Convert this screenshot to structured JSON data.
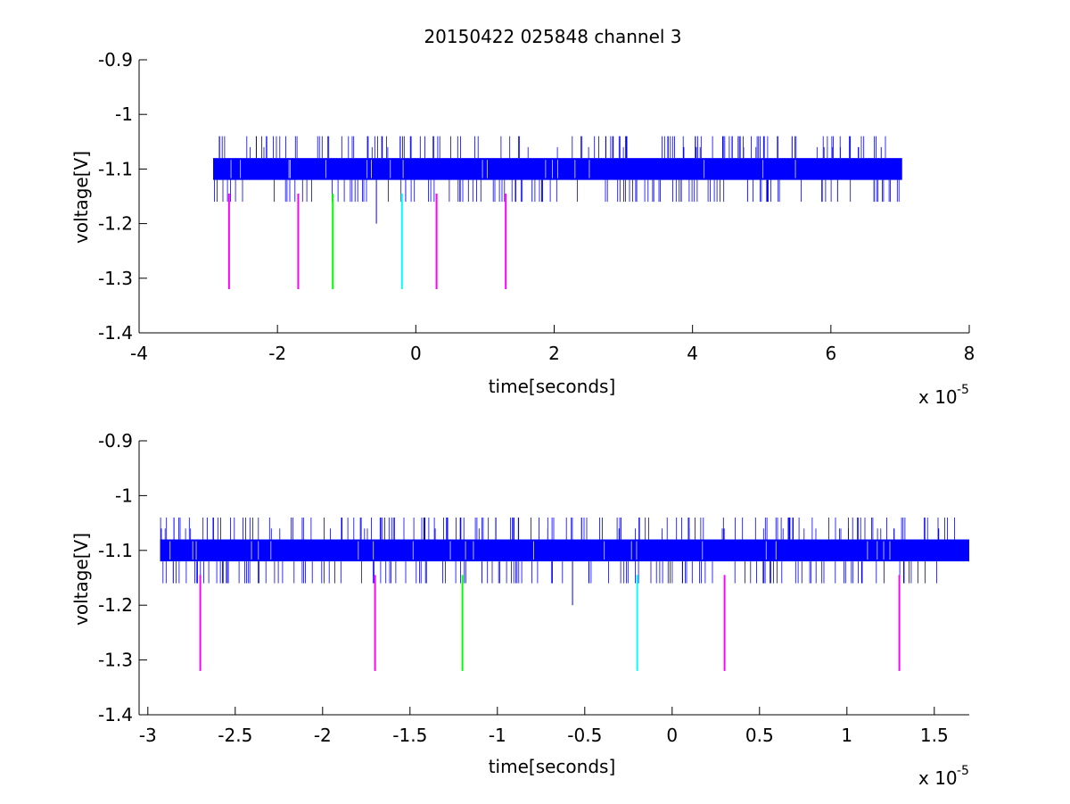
{
  "figure": {
    "title": "20150422 025848 channel 3"
  },
  "colors": {
    "signal": "#0000ff",
    "magenta": "#ff00ff",
    "green": "#00ff00",
    "cyan": "#00ffff",
    "axes": "#000000"
  },
  "chart_data": [
    {
      "type": "line",
      "title": "20150422 025848 channel 3",
      "xlabel": "time[seconds]",
      "ylabel": "voltage[V]",
      "x_exponent_label": "x 10",
      "x_exponent": "-5",
      "x_scale": 1e-05,
      "xlim": [
        -4,
        8
      ],
      "ylim": [
        -1.4,
        -0.9
      ],
      "y_reversed": true,
      "xticks": [
        -4,
        -2,
        0,
        2,
        4,
        6,
        8
      ],
      "xtick_labels": [
        "-4",
        "-2",
        "0",
        "2",
        "4",
        "6",
        "8"
      ],
      "yticks": [
        -0.9,
        -1.0,
        -1.1,
        -1.2,
        -1.3,
        -1.4
      ],
      "ytick_labels": [
        "-0.9",
        "-1",
        "-1.1",
        "-1.2",
        "-1.3",
        "-1.4"
      ],
      "grid": false,
      "series": [
        {
          "kind": "signal",
          "color": "#0000ff",
          "x_range": [
            -2.93,
            7.03
          ],
          "band": [
            -1.12,
            -1.08
          ],
          "spike_min": -1.16,
          "spike_max": -1.04,
          "outlier": {
            "x": -0.57,
            "y": -1.2
          }
        }
      ],
      "markers": [
        {
          "x": -2.7,
          "y_top": -1.145,
          "y_bottom": -1.32,
          "color": "#ff00ff"
        },
        {
          "x": -1.7,
          "y_top": -1.145,
          "y_bottom": -1.32,
          "color": "#ff00ff"
        },
        {
          "x": -1.2,
          "y_top": -1.145,
          "y_bottom": -1.32,
          "color": "#00ff00"
        },
        {
          "x": -0.2,
          "y_top": -1.145,
          "y_bottom": -1.32,
          "color": "#00ffff"
        },
        {
          "x": 0.3,
          "y_top": -1.145,
          "y_bottom": -1.32,
          "color": "#ff00ff"
        },
        {
          "x": 1.3,
          "y_top": -1.145,
          "y_bottom": -1.32,
          "color": "#ff00ff"
        }
      ]
    },
    {
      "type": "line",
      "title": "",
      "xlabel": "time[seconds]",
      "ylabel": "voltage[V]",
      "x_exponent_label": "x 10",
      "x_exponent": "-5",
      "x_scale": 1e-05,
      "xlim": [
        -3.05,
        1.7
      ],
      "ylim": [
        -1.4,
        -0.9
      ],
      "y_reversed": true,
      "xticks": [
        -3,
        -2.5,
        -2,
        -1.5,
        -1,
        -0.5,
        0,
        0.5,
        1,
        1.5
      ],
      "xtick_labels": [
        "-3",
        "-2.5",
        "-2",
        "-1.5",
        "-1",
        "-0.5",
        "0",
        "0.5",
        "1",
        "1.5"
      ],
      "yticks": [
        -0.9,
        -1.0,
        -1.1,
        -1.2,
        -1.3,
        -1.4
      ],
      "ytick_labels": [
        "-0.9",
        "-1",
        "-1.1",
        "-1.2",
        "-1.3",
        "-1.4"
      ],
      "grid": false,
      "series": [
        {
          "kind": "signal",
          "color": "#0000ff",
          "x_range": [
            -2.93,
            1.7
          ],
          "band": [
            -1.12,
            -1.08
          ],
          "spike_min": -1.16,
          "spike_max": -1.04,
          "outlier": {
            "x": -0.57,
            "y": -1.2
          }
        }
      ],
      "markers": [
        {
          "x": -2.7,
          "y_top": -1.145,
          "y_bottom": -1.32,
          "color": "#ff00ff"
        },
        {
          "x": -1.7,
          "y_top": -1.145,
          "y_bottom": -1.32,
          "color": "#ff00ff"
        },
        {
          "x": -1.2,
          "y_top": -1.145,
          "y_bottom": -1.32,
          "color": "#00ff00"
        },
        {
          "x": -0.2,
          "y_top": -1.145,
          "y_bottom": -1.32,
          "color": "#00ffff"
        },
        {
          "x": 0.3,
          "y_top": -1.145,
          "y_bottom": -1.32,
          "color": "#ff00ff"
        },
        {
          "x": 1.3,
          "y_top": -1.145,
          "y_bottom": -1.32,
          "color": "#ff00ff"
        }
      ]
    }
  ]
}
